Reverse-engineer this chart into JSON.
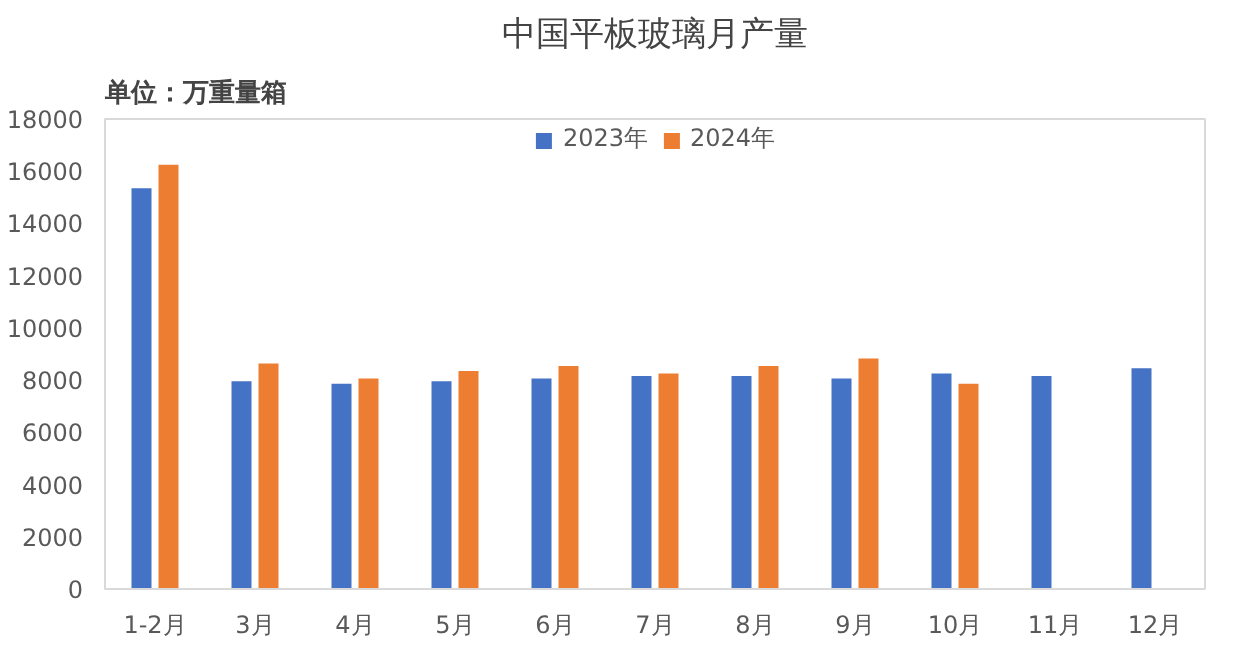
{
  "chart_data": {
    "type": "bar",
    "title": "中国平板玻璃月产量",
    "ylabel": "单位：万重量箱",
    "categories": [
      "1-2月",
      "3月",
      "4月",
      "5月",
      "6月",
      "7月",
      "8月",
      "9月",
      "10月",
      "11月",
      "12月"
    ],
    "series": [
      {
        "name": "2023年",
        "color": "#4472c4",
        "values": [
          15350,
          7960,
          7860,
          7960,
          8060,
          8160,
          8160,
          8060,
          8250,
          8160,
          8450
        ]
      },
      {
        "name": "2024年",
        "color": "#ed7d31",
        "values": [
          16250,
          8640,
          8060,
          8350,
          8540,
          8250,
          8540,
          8830,
          7860,
          null,
          null
        ]
      }
    ],
    "ylim": [
      0,
      18000
    ],
    "yticks": [
      0,
      2000,
      4000,
      6000,
      8000,
      10000,
      12000,
      14000,
      16000,
      18000
    ],
    "grid": false,
    "legend": "top"
  }
}
